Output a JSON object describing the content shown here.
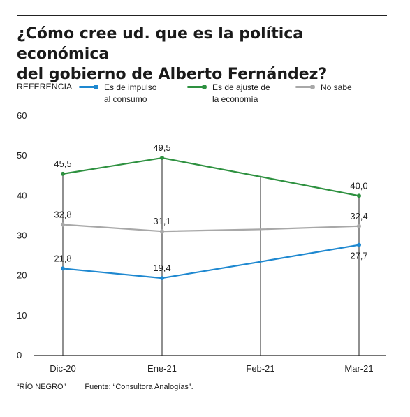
{
  "title": {
    "line1": "¿Cómo cree ud. que es la política económica",
    "line2": "del gobierno de Alberto Fernández?"
  },
  "legend": {
    "label": "REFERENCIA",
    "items": [
      {
        "line1": "Es de impulso",
        "line2": "al consumo",
        "color": "#1e88d0"
      },
      {
        "line1": "Es de ajuste de",
        "line2": "la economía",
        "color": "#2e9140"
      },
      {
        "line1": "No sabe",
        "line2": "",
        "color": "#a8a8a8"
      }
    ]
  },
  "footer": {
    "brand": "“RÍO NEGRO”",
    "source": "Fuente: “Consultora Analogías”."
  },
  "chart_data": {
    "type": "line",
    "categories": [
      "Dic-20",
      "Ene-21",
      "Feb-21",
      "Mar-21"
    ],
    "ylim": [
      0,
      60
    ],
    "yticks": [
      0,
      10,
      20,
      30,
      40,
      50,
      60
    ],
    "grid": false,
    "series": [
      {
        "name": "Es de ajuste de la economía",
        "color": "#2e9140",
        "values": [
          45.5,
          49.5,
          44.8,
          40.0
        ],
        "labels": [
          "45,5",
          "49,5",
          "",
          "40,0"
        ]
      },
      {
        "name": "No sabe",
        "color": "#a8a8a8",
        "values": [
          32.8,
          31.1,
          31.6,
          32.4
        ],
        "labels": [
          "32,8",
          "31,1",
          "",
          "32,4"
        ]
      },
      {
        "name": "Es de impulso al consumo",
        "color": "#1e88d0",
        "values": [
          21.8,
          19.4,
          23.5,
          27.7
        ],
        "labels": [
          "21,8",
          "19,4",
          "",
          "27,7"
        ]
      }
    ]
  }
}
